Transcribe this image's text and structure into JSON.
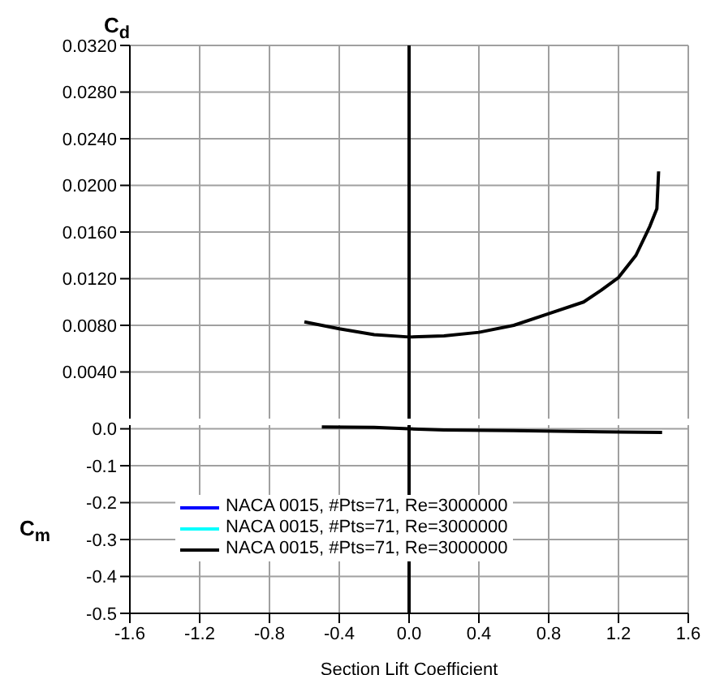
{
  "chart_data": [
    {
      "type": "line",
      "ylabel": "C$_{d}$",
      "xlim": [
        -1.6,
        1.6
      ],
      "xticks": [
        -1.6,
        -1.2,
        -0.8,
        -0.4,
        0,
        0.4,
        0.8,
        1.2,
        1.6
      ],
      "ylim": [
        0,
        0.032
      ],
      "yticks": [
        {
          "value": 0.004,
          "label": "0.0040"
        },
        {
          "value": 0.008,
          "label": "0.0080"
        },
        {
          "value": 0.012,
          "label": "0.0120"
        },
        {
          "value": 0.016,
          "label": "0.0160"
        },
        {
          "value": 0.02,
          "label": "0.0200"
        },
        {
          "value": 0.024,
          "label": "0.0240"
        },
        {
          "value": 0.028,
          "label": "0.0280"
        },
        {
          "value": 0.032,
          "label": "0.0320"
        }
      ],
      "tick_labels": "y",
      "grid": true,
      "ref_lines": [
        {
          "axis": "x",
          "value": 0,
          "color": "#000000"
        }
      ],
      "series": [
        {
          "color": "#000000",
          "x": [
            -0.6,
            -0.4,
            -0.2,
            0,
            0.2,
            0.4,
            0.6,
            0.8,
            1.0,
            1.1,
            1.2,
            1.3,
            1.38,
            1.42,
            1.43
          ],
          "values": [
            0.0083,
            0.0077,
            0.0072,
            0.007,
            0.0071,
            0.0074,
            0.008,
            0.009,
            0.01,
            0.011,
            0.0121,
            0.014,
            0.0165,
            0.018,
            0.0212
          ]
        }
      ]
    },
    {
      "type": "line",
      "ylabel": "C$_{m}$",
      "xlabel": "Section Lift Coefficient",
      "xlim": [
        -1.6,
        1.6
      ],
      "xticks": [
        -1.6,
        -1.2,
        -0.8,
        -0.4,
        {
          "value": 0,
          "label": "0.0"
        },
        0.4,
        0.8,
        1.2,
        1.6
      ],
      "ylim": [
        -0.5,
        0.01
      ],
      "yticks": [
        -0.5,
        -0.4,
        -0.3,
        -0.2,
        -0.1,
        {
          "value": 0,
          "label": "0.0"
        }
      ],
      "grid": true,
      "legend": "left",
      "ref_lines": [
        {
          "axis": "x",
          "value": 0,
          "color": "#000000"
        }
      ],
      "series": [
        {
          "name": "NACA 0015, #Pts=71, Re=3000000",
          "color": "#0000ff"
        },
        {
          "name": "NACA 0015, #Pts=71, Re=3000000",
          "color": "#00ffff"
        },
        {
          "name": "NACA 0015, #Pts=71, Re=3000000",
          "color": "#000000",
          "x": [
            -0.5,
            -0.2,
            0,
            0.2,
            0.6,
            1.1,
            1.45
          ],
          "values": [
            0.005,
            0.004,
            0,
            -0.003,
            -0.005,
            -0.008,
            -0.01
          ]
        }
      ]
    }
  ]
}
